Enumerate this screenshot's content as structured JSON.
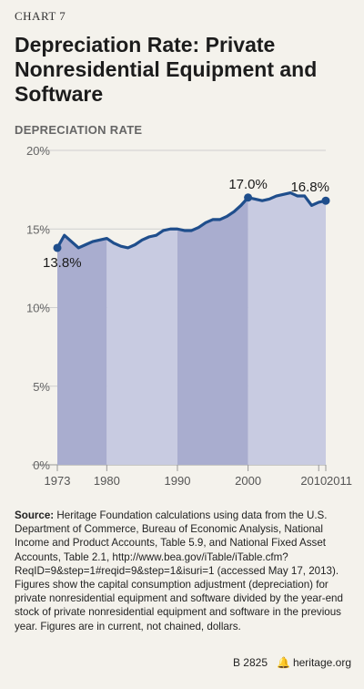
{
  "chart_label": "CHART 7",
  "title": "Depreciation Rate: Private Nonresidential Equipment and Software",
  "source_label": "Source:",
  "source_text": "Heritage Foundation calculations using data from the U.S. Department of Commerce, Bureau of Economic Analysis, National Income and Product Accounts, Table 5.9, and National Fixed Asset Accounts, Table 2.1, http://www.bea.gov/iTable/iTable.cfm?ReqID=9&step=1#reqid=9&step=1&isuri=1 (accessed May 17, 2013). Figures show the capital consumption adjustment (depreciation) for private nonresidential equipment and software divided by the year-end stock of private nonresidential equipment and software in the previous year. Figures are in current, not chained, dollars.",
  "footer": {
    "code": "B 2825",
    "site": "heritage.org"
  },
  "colors": {
    "line": "#1f4e8c",
    "fill_dark": "#a9adcf",
    "fill_light": "#c8cbe1",
    "grid": "#cfcfcf"
  },
  "chart_data": {
    "type": "area",
    "title": "Depreciation Rate: Private Nonresidential Equipment and Software",
    "ylabel": "DEPRECIATION RATE",
    "xlabel": "",
    "ylim": [
      0,
      20
    ],
    "xlim": [
      1973,
      2011
    ],
    "yticks": [
      "0%",
      "5%",
      "10%",
      "15%",
      "20%"
    ],
    "xticks": [
      "1973",
      "1980",
      "1990",
      "2000",
      "2010",
      "2011"
    ],
    "grid": true,
    "x": [
      1973,
      1974,
      1975,
      1976,
      1977,
      1978,
      1979,
      1980,
      1981,
      1982,
      1983,
      1984,
      1985,
      1986,
      1987,
      1988,
      1989,
      1990,
      1991,
      1992,
      1993,
      1994,
      1995,
      1996,
      1997,
      1998,
      1999,
      2000,
      2001,
      2002,
      2003,
      2004,
      2005,
      2006,
      2007,
      2008,
      2009,
      2010,
      2011
    ],
    "y": [
      13.8,
      14.6,
      14.2,
      13.8,
      14.0,
      14.2,
      14.3,
      14.4,
      14.1,
      13.9,
      13.8,
      14.0,
      14.3,
      14.5,
      14.6,
      14.9,
      15.0,
      15.0,
      14.9,
      14.9,
      15.1,
      15.4,
      15.6,
      15.6,
      15.8,
      16.1,
      16.5,
      17.0,
      16.9,
      16.8,
      16.9,
      17.1,
      17.2,
      17.3,
      17.1,
      17.1,
      16.5,
      16.7,
      16.8
    ],
    "annotations": [
      {
        "x": 1973,
        "y": 13.8,
        "label": "13.8%"
      },
      {
        "x": 2000,
        "y": 17.0,
        "label": "17.0%"
      },
      {
        "x": 2011,
        "y": 16.8,
        "label": "16.8%"
      }
    ],
    "shading_bands": [
      [
        1973,
        1980
      ],
      [
        1980,
        1990
      ],
      [
        1990,
        2000
      ],
      [
        2000,
        2011
      ]
    ]
  }
}
